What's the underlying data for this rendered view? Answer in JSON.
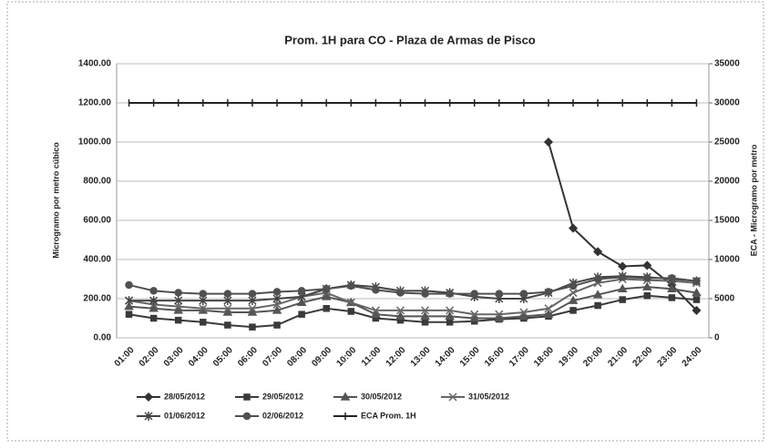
{
  "chart_data": {
    "type": "line",
    "title": "Prom. 1H para CO - Plaza de Armas de Pisco",
    "y_label": "Microgramo por metro cúbico",
    "y2_label": "ECA - Microgramo por metro",
    "categories": [
      "01:00",
      "02:00",
      "03:00",
      "04:00",
      "05:00",
      "06:00",
      "07:00",
      "08:00",
      "09:00",
      "10:00",
      "11:00",
      "12:00",
      "13:00",
      "14:00",
      "15:00",
      "16:00",
      "17:00",
      "18:00",
      "19:00",
      "20:00",
      "21:00",
      "22:00",
      "23:00",
      "24:00"
    ],
    "ylim": [
      0,
      1400
    ],
    "yticks": [
      {
        "value": 0,
        "label": "0.00"
      },
      {
        "value": 200,
        "label": "200.00"
      },
      {
        "value": 400,
        "label": "400.00"
      },
      {
        "value": 600,
        "label": "600.00"
      },
      {
        "value": 800,
        "label": "800.00"
      },
      {
        "value": 1000,
        "label": "1000.00"
      },
      {
        "value": 1200,
        "label": "1200.00"
      },
      {
        "value": 1400,
        "label": "1400.00"
      }
    ],
    "y2lim": [
      0,
      35000
    ],
    "y2ticks": [
      0,
      5000,
      10000,
      15000,
      20000,
      25000,
      30000,
      35000
    ],
    "grid": true,
    "series": [
      {
        "name": "28/05/2012",
        "color": "#333333",
        "marker": "diamond",
        "values": [
          null,
          null,
          null,
          null,
          null,
          null,
          null,
          null,
          null,
          null,
          null,
          null,
          null,
          null,
          null,
          null,
          null,
          1000,
          560,
          440,
          365,
          370,
          270,
          140
        ]
      },
      {
        "name": "29/05/2012",
        "color": "#3a3a3a",
        "marker": "square",
        "values": [
          120,
          100,
          90,
          80,
          65,
          55,
          65,
          120,
          150,
          135,
          100,
          90,
          80,
          80,
          85,
          95,
          100,
          110,
          140,
          165,
          195,
          215,
          205,
          195
        ]
      },
      {
        "name": "30/05/2012",
        "color": "#555555",
        "marker": "triangle",
        "values": [
          160,
          150,
          140,
          140,
          130,
          130,
          140,
          180,
          210,
          180,
          120,
          110,
          110,
          110,
          100,
          100,
          110,
          120,
          190,
          220,
          250,
          260,
          250,
          230
        ]
      },
      {
        "name": "31/05/2012",
        "color": "#666666",
        "marker": "x",
        "values": [
          190,
          170,
          160,
          150,
          150,
          150,
          170,
          210,
          230,
          180,
          140,
          140,
          140,
          140,
          120,
          120,
          130,
          150,
          230,
          280,
          300,
          295,
          290,
          280
        ]
      },
      {
        "name": "01/06/2012",
        "color": "#444444",
        "marker": "star",
        "values": [
          190,
          190,
          190,
          190,
          190,
          190,
          200,
          210,
          250,
          270,
          260,
          240,
          240,
          230,
          210,
          200,
          200,
          230,
          280,
          310,
          315,
          310,
          300,
          290
        ]
      },
      {
        "name": "02/06/2012",
        "color": "#505050",
        "marker": "circle",
        "values": [
          270,
          240,
          230,
          225,
          225,
          225,
          235,
          240,
          250,
          265,
          245,
          230,
          225,
          225,
          225,
          225,
          225,
          235,
          265,
          300,
          310,
          305,
          305,
          290
        ]
      },
      {
        "name": "ECA Prom. 1H",
        "color": "#222222",
        "marker": "plus",
        "axis": "y2",
        "values": [
          30000,
          30000,
          30000,
          30000,
          30000,
          30000,
          30000,
          30000,
          30000,
          30000,
          30000,
          30000,
          30000,
          30000,
          30000,
          30000,
          30000,
          30000,
          30000,
          30000,
          30000,
          30000,
          30000,
          30000
        ]
      }
    ]
  }
}
